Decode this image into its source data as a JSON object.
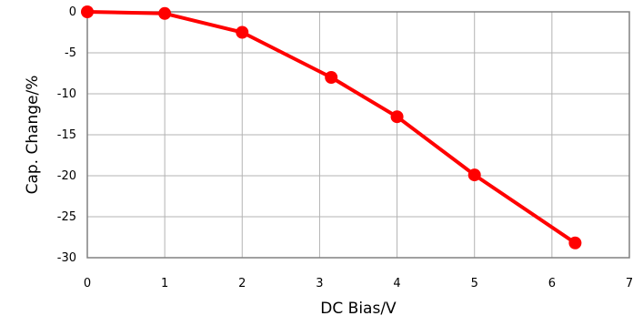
{
  "chart_data": {
    "type": "line",
    "title": "",
    "xlabel": "DC Bias/V",
    "ylabel": "Cap. Change/%",
    "xlim": [
      0,
      7
    ],
    "ylim": [
      -30,
      0
    ],
    "x_ticks": [
      "0",
      "1",
      "2",
      "3",
      "4",
      "5",
      "6",
      "7"
    ],
    "y_ticks": [
      "0",
      "-5",
      "-10",
      "-15",
      "-20",
      "-25",
      "-30"
    ],
    "grid": true,
    "legend": "none",
    "series": [
      {
        "color": "#ff0000",
        "x": [
          0,
          1,
          2,
          3.15,
          4,
          5,
          6.3
        ],
        "y": [
          0,
          -0.2,
          -2.5,
          -8,
          -12.8,
          -19.9,
          -28.2
        ]
      }
    ]
  }
}
